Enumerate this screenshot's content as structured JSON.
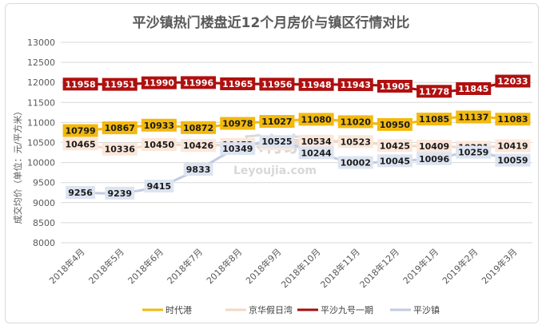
{
  "chart_data": {
    "type": "line",
    "title": "平沙镇热门楼盘近12个月房价与镇区行情对比",
    "ylabel": "成交均价（单位：元/平方米）",
    "xlabel": "",
    "ylim": [
      8000,
      13000
    ],
    "yticks": [
      8000,
      8500,
      9000,
      9500,
      10000,
      10500,
      11000,
      11500,
      12000,
      12500,
      13000
    ],
    "grid": true,
    "legend": "bottom",
    "categories": [
      "2018年4月",
      "2018年5月",
      "2018年6月",
      "2018年7月",
      "2018年8月",
      "2018年9月",
      "2018年10月",
      "2018年11月",
      "2018年12月",
      "2019年1月",
      "2019年2月",
      "2019年3月"
    ],
    "series": [
      {
        "name": "时代港",
        "color": "#f2b90f",
        "label_bg": "#f2b90f",
        "label_fg": "#1a1a1a",
        "values": [
          10799,
          10867,
          10933,
          10872,
          10978,
          11027,
          11080,
          11020,
          10950,
          11085,
          11137,
          11083
        ]
      },
      {
        "name": "京华假日湾",
        "color": "#f5d7c3",
        "label_bg": "#fbe7da",
        "label_fg": "#1a1a1a",
        "values": [
          10465,
          10336,
          10450,
          10426,
          10452,
          10466,
          10534,
          10523,
          10425,
          10409,
          10381,
          10419
        ]
      },
      {
        "name": "平沙九号一期",
        "color": "#a50d0d",
        "label_bg": "#b01010",
        "label_fg": "#ffffff",
        "values": [
          11958,
          11951,
          11990,
          11996,
          11965,
          11956,
          11948,
          11943,
          11905,
          11778,
          11845,
          12033
        ]
      },
      {
        "name": "平沙镇",
        "color": "#c3cbe0",
        "label_bg": "#dde4f1",
        "label_fg": "#1a1a1a",
        "values": [
          9256,
          9239,
          9415,
          9833,
          10349,
          10525,
          10244,
          10002,
          10045,
          10096,
          10259,
          10059
        ]
      }
    ]
  },
  "watermark": {
    "logo_text": "乐有家",
    "url_text": "Leyoujia.com"
  }
}
